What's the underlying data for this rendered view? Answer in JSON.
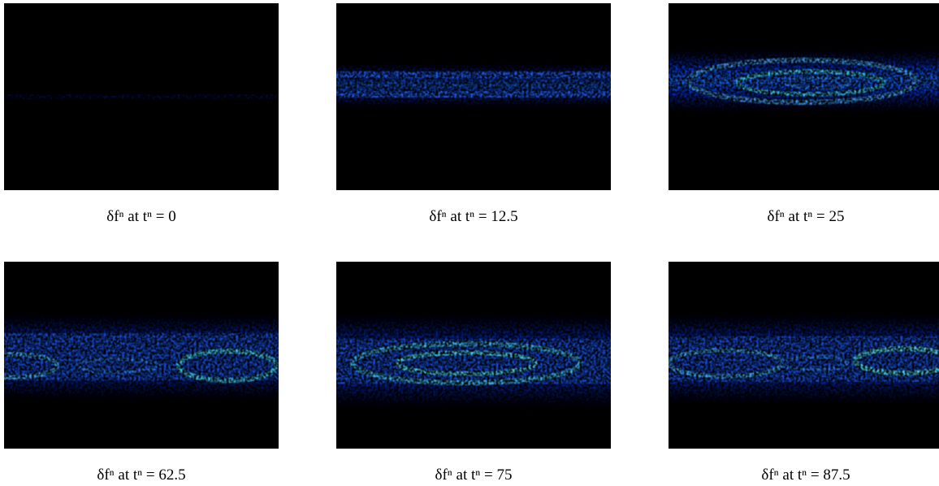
{
  "panels": [
    {
      "caption": "δfⁿ at tⁿ = 0"
    },
    {
      "caption": "δfⁿ at tⁿ = 12.5"
    },
    {
      "caption": "δfⁿ at tⁿ = 25"
    },
    {
      "caption": "δfⁿ at tⁿ = 62.5"
    },
    {
      "caption": "δfⁿ at tⁿ = 75"
    },
    {
      "caption": "δfⁿ at tⁿ = 87.5"
    }
  ]
}
